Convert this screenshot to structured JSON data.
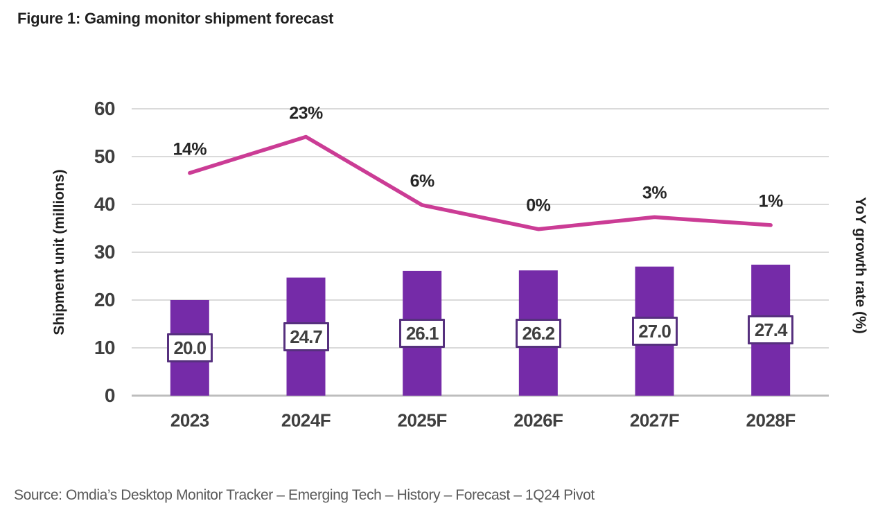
{
  "figure": {
    "title": "Figure 1: Gaming monitor shipment forecast",
    "source": "Source: Omdia’s Desktop Monitor Tracker – Emerging Tech – History – Forecast – 1Q24 Pivot"
  },
  "chart_data": {
    "type": "combo-bar-line",
    "categories": [
      "2023",
      "2024F",
      "2025F",
      "2026F",
      "2027F",
      "2028F"
    ],
    "series": [
      {
        "name": "Shipment unit (millions)",
        "type": "bar",
        "axis": "left",
        "values": [
          20.0,
          24.7,
          26.1,
          26.2,
          27.0,
          27.4
        ],
        "data_labels": [
          "20.0",
          "24.7",
          "26.1",
          "26.2",
          "27.0",
          "27.4"
        ]
      },
      {
        "name": "YoY growth rate (%)",
        "type": "line",
        "axis": "right",
        "values": [
          14,
          23,
          6,
          0,
          3,
          1
        ],
        "data_labels": [
          "14%",
          "23%",
          "6%",
          "0%",
          "3%",
          "1%"
        ]
      }
    ],
    "left_axis": {
      "title": "Shipment unit (millions)",
      "min": 0,
      "max": 60,
      "tick_interval": 10,
      "ticks": [
        "0",
        "10",
        "20",
        "30",
        "40",
        "50",
        "60"
      ]
    },
    "right_axis": {
      "title": "YoY growth rate (%)",
      "ticks_visible": false,
      "inferred_min": -41.5,
      "inferred_max": 30
    },
    "legend": "none",
    "grid": "horizontal",
    "colors": {
      "bar": "#752BA8",
      "line": "#CB3C95",
      "label_box_border": "#56307E",
      "gridline": "#DADADA",
      "axis_line": "#BDBDBD",
      "tick_text": "#3F3F3F",
      "pct_text": "#262626",
      "title_text": "#1F1F1F",
      "source_text": "#595959"
    }
  }
}
